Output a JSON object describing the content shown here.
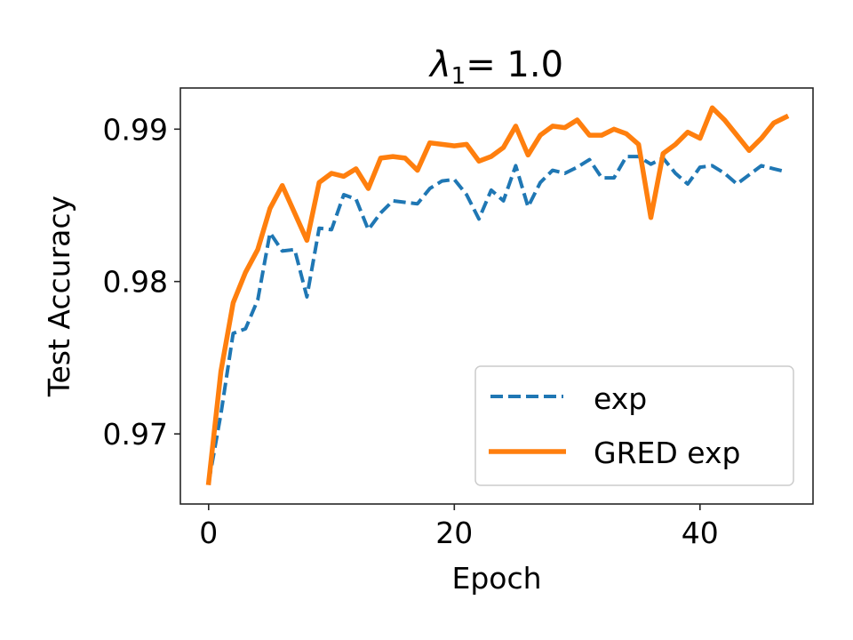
{
  "chart_data": {
    "type": "line",
    "title": "λ1= 1.0",
    "title_parts": {
      "symbol": "λ",
      "subscript": "1",
      "rest": "= 1.0"
    },
    "xlabel": "Epoch",
    "ylabel": "Test Accuracy",
    "xlim": [
      -2.3,
      49.2
    ],
    "ylim": [
      0.9654,
      0.9927
    ],
    "xticks": [
      0,
      20,
      40
    ],
    "xtick_labels": [
      "0",
      "20",
      "40"
    ],
    "yticks": [
      0.97,
      0.98,
      0.99
    ],
    "ytick_labels": [
      "0.97",
      "0.98",
      "0.99"
    ],
    "grid": false,
    "legend_position": "lower right",
    "x": [
      0,
      1,
      2,
      3,
      4,
      5,
      6,
      7,
      8,
      9,
      10,
      11,
      12,
      13,
      14,
      15,
      16,
      17,
      18,
      19,
      20,
      21,
      22,
      23,
      24,
      25,
      26,
      27,
      28,
      29,
      30,
      31,
      32,
      33,
      34,
      35,
      36,
      37,
      38,
      39,
      40,
      41,
      42,
      43,
      44,
      45,
      46,
      47
    ],
    "series": [
      {
        "name": "exp",
        "color": "#1f77b4",
        "linestyle": "dashed",
        "values": [
          0.9668,
          0.9713,
          0.9766,
          0.9769,
          0.9788,
          0.9832,
          0.982,
          0.9821,
          0.979,
          0.9835,
          0.9834,
          0.9857,
          0.9854,
          0.9834,
          0.9845,
          0.9853,
          0.9852,
          0.9851,
          0.9861,
          0.9866,
          0.9867,
          0.9857,
          0.9841,
          0.986,
          0.9853,
          0.9876,
          0.9849,
          0.9865,
          0.9873,
          0.9871,
          0.9875,
          0.988,
          0.9868,
          0.9868,
          0.9882,
          0.9882,
          0.9877,
          0.9881,
          0.9871,
          0.9864,
          0.9875,
          0.9876,
          0.9871,
          0.9864,
          0.987,
          0.9876,
          0.9874,
          0.9872
        ]
      },
      {
        "name": "GRED exp",
        "color": "#ff7f0e",
        "linestyle": "solid",
        "values": [
          0.9668,
          0.9741,
          0.9786,
          0.9806,
          0.9821,
          0.9848,
          0.9863,
          0.9845,
          0.9827,
          0.9865,
          0.9871,
          0.9869,
          0.9874,
          0.9861,
          0.9881,
          0.9882,
          0.9881,
          0.9873,
          0.9891,
          0.989,
          0.9889,
          0.989,
          0.9879,
          0.9882,
          0.9888,
          0.9902,
          0.9883,
          0.9896,
          0.9902,
          0.9901,
          0.9906,
          0.9896,
          0.9896,
          0.99,
          0.9897,
          0.989,
          0.9842,
          0.9884,
          0.989,
          0.9898,
          0.9894,
          0.9914,
          0.9906,
          0.9896,
          0.9886,
          0.9894,
          0.9904,
          0.9908
        ]
      }
    ]
  },
  "legend": {
    "items": [
      {
        "label": "exp",
        "color": "#1f77b4",
        "linestyle": "dashed"
      },
      {
        "label": "GRED exp",
        "color": "#ff7f0e",
        "linestyle": "solid"
      }
    ]
  }
}
